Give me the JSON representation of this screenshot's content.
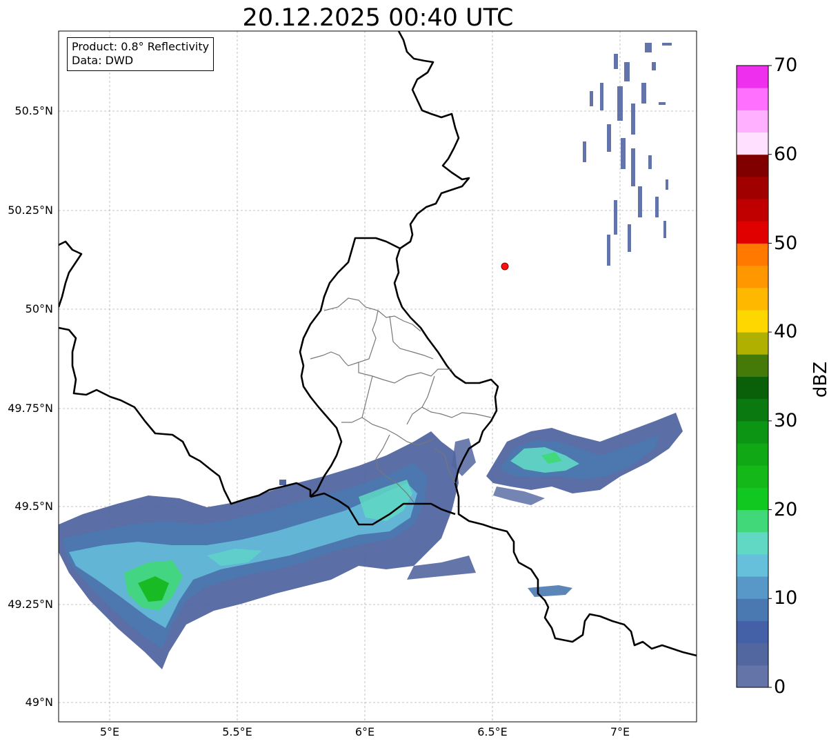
{
  "title": "20.12.2025 00:40 UTC",
  "info": {
    "product": "Product: 0.8° Reflectivity",
    "source": "Data: DWD"
  },
  "axes": {
    "lat_ticks": [
      "50.5°N",
      "50.25°N",
      "50°N",
      "49.75°N",
      "49.5°N",
      "49.25°N",
      "49°N"
    ],
    "lon_ticks": [
      "5°E",
      "5.5°E",
      "6°E",
      "6.5°E",
      "7°E"
    ]
  },
  "colorbar": {
    "label": "dBZ",
    "ticks": [
      "0",
      "10",
      "20",
      "30",
      "40",
      "50",
      "60",
      "70"
    ],
    "range": [
      0,
      70
    ],
    "colors": [
      "#6474a8",
      "#5266a0",
      "#4460a6",
      "#4a78b0",
      "#5898c8",
      "#66c0dc",
      "#60d8c4",
      "#40d878",
      "#10c820",
      "#14b818",
      "#10a814",
      "#0c9414",
      "#0a7a10",
      "#0a6008",
      "#467a08",
      "#b0b000",
      "#ffd700",
      "#ffb800",
      "#ff9800",
      "#ff7800",
      "#e00000",
      "#c00000",
      "#a00000",
      "#800000",
      "#ffe0ff",
      "#ffb0ff",
      "#ff70ff",
      "#ee30ee"
    ]
  },
  "radar_site": {
    "lon": 6.547,
    "lat": 50.11,
    "color": "#ff1010"
  },
  "extent": {
    "lon": [
      4.8,
      7.3
    ],
    "lat": [
      48.95,
      50.7
    ]
  }
}
